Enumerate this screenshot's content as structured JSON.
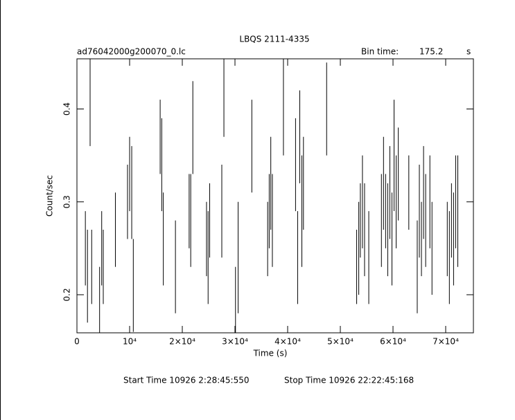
{
  "chart_data": {
    "type": "errorbar",
    "title": "LBQS 2111-4335",
    "subtitle": "ad76042000g200070_0.lc",
    "bin_time_label": "Bin time:",
    "bin_time": 175.2,
    "bin_time_unit": "s",
    "x_label": "Time (s)",
    "y_label": "Count/sec",
    "start_time": "Start Time 10926  2:28:45:550",
    "stop_time": "Stop Time 10926 22:22:45:168",
    "xlim": [
      0,
      75263
    ],
    "ylim": [
      0.159,
      0.454
    ],
    "xticks": [
      0,
      {
        "value": 10000,
        "label": "10⁴"
      },
      {
        "value": 20000,
        "label": "2×10⁴"
      },
      {
        "value": 30000,
        "label": "3×10⁴"
      },
      {
        "value": 40000,
        "label": "4×10⁴"
      },
      {
        "value": 50000,
        "label": "5×10⁴"
      },
      {
        "value": 60000,
        "label": "6×10⁴"
      },
      {
        "value": 70000,
        "label": "7×10⁴"
      }
    ],
    "yticks": [
      0.2,
      0.3,
      0.4
    ],
    "series": [
      {
        "color": "#000000",
        "x": [
          1600,
          2000,
          2500,
          2800,
          4300,
          4700,
          5000,
          7300,
          9600,
          10000,
          10400,
          10700,
          15800,
          16100,
          16400,
          18700,
          21300,
          21600,
          22000,
          24600,
          24900,
          25200,
          27500,
          27900,
          30100,
          30600,
          33200,
          36200,
          36500,
          36800,
          37100,
          39200,
          41500,
          41900,
          42300,
          42700,
          43000,
          47400,
          53100,
          53500,
          53800,
          54200,
          54600,
          55400,
          57800,
          58200,
          58600,
          59000,
          59400,
          59800,
          60200,
          60600,
          61000,
          63000,
          64600,
          65000,
          65400,
          65800,
          66200,
          67000,
          67400,
          70300,
          70700,
          71100,
          71500,
          71900,
          72300
        ],
        "values": [
          0.25,
          0.22,
          0.41,
          0.23,
          0.19,
          0.25,
          0.23,
          0.27,
          0.3,
          0.33,
          0.31,
          0.21,
          0.37,
          0.34,
          0.26,
          0.23,
          0.29,
          0.28,
          0.38,
          0.26,
          0.24,
          0.28,
          0.29,
          0.42,
          0.19,
          0.24,
          0.36,
          0.26,
          0.29,
          0.32,
          0.28,
          0.41,
          0.34,
          0.24,
          0.37,
          0.29,
          0.32,
          0.4,
          0.23,
          0.25,
          0.28,
          0.3,
          0.27,
          0.24,
          0.28,
          0.32,
          0.29,
          0.27,
          0.31,
          0.26,
          0.35,
          0.3,
          0.33,
          0.31,
          0.23,
          0.29,
          0.26,
          0.31,
          0.28,
          0.3,
          0.25,
          0.26,
          0.24,
          0.28,
          0.26,
          0.3,
          0.29
        ],
        "errors": [
          0.04,
          0.05,
          0.05,
          0.04,
          0.04,
          0.04,
          0.04,
          0.04,
          0.04,
          0.04,
          0.05,
          0.05,
          0.04,
          0.05,
          0.05,
          0.05,
          0.04,
          0.05,
          0.05,
          0.04,
          0.05,
          0.04,
          0.05,
          0.05,
          0.04,
          0.06,
          0.05,
          0.04,
          0.04,
          0.05,
          0.05,
          0.06,
          0.05,
          0.05,
          0.05,
          0.06,
          0.05,
          0.05,
          0.04,
          0.05,
          0.04,
          0.05,
          0.05,
          0.05,
          0.05,
          0.05,
          0.04,
          0.05,
          0.05,
          0.05,
          0.06,
          0.05,
          0.05,
          0.04,
          0.05,
          0.05,
          0.04,
          0.05,
          0.05,
          0.05,
          0.05,
          0.04,
          0.05,
          0.04,
          0.05,
          0.05,
          0.06
        ]
      }
    ]
  }
}
